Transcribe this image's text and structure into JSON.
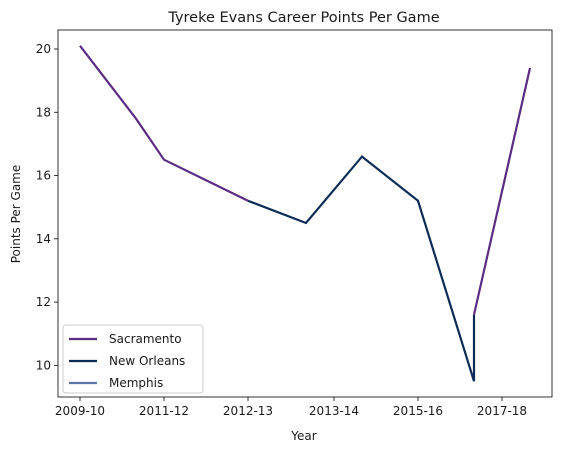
{
  "chart_data": {
    "type": "line",
    "title": "Tyreke Evans Career Points Per Game",
    "xlabel": "Year",
    "ylabel": "Points Per Game",
    "x_ticks": [
      "2009-10",
      "2011-12",
      "2012-13",
      "2013-14",
      "2015-16",
      "2017-18"
    ],
    "y_ticks": [
      10,
      12,
      14,
      16,
      18,
      20
    ],
    "ylim": [
      9,
      20.6
    ],
    "grid": false,
    "legend_position": "lower-left",
    "series": [
      {
        "name": "Sacramento",
        "color": "#5b2c83",
        "segments": [
          [
            [
              "2009-10",
              20.1
            ],
            [
              "2010-11",
              17.8
            ],
            [
              "2011-12",
              16.5
            ],
            [
              "2012-13",
              15.2
            ]
          ],
          [
            [
              "2016-17b",
              11.6
            ],
            [
              "2017-18",
              19.4
            ]
          ]
        ]
      },
      {
        "name": "New Orleans",
        "color": "#0c2c56",
        "segments": [
          [
            [
              "2012-13",
              15.2
            ],
            [
              "2013-14",
              14.5
            ],
            [
              "2014-15",
              16.6
            ],
            [
              "2015-16",
              15.2
            ],
            [
              "2016-17",
              9.5
            ],
            [
              "2016-17b",
              11.6
            ]
          ]
        ]
      },
      {
        "name": "Memphis",
        "color": "#5d76a9",
        "segments": []
      }
    ]
  }
}
